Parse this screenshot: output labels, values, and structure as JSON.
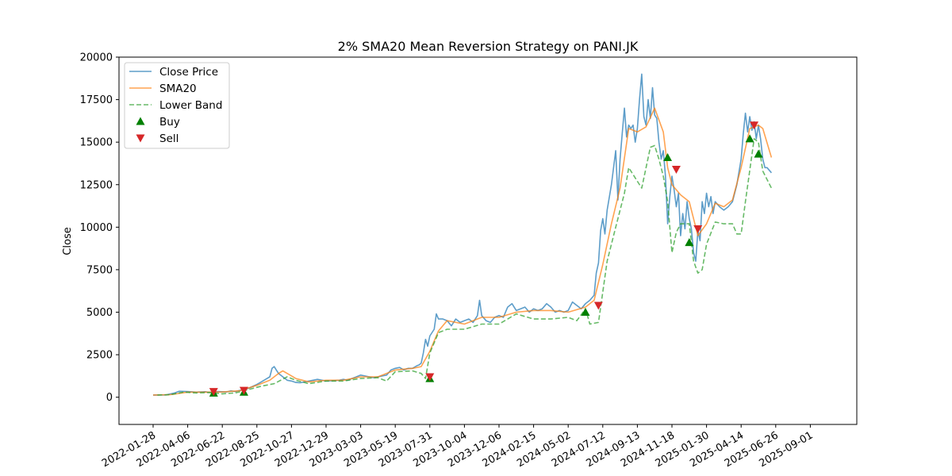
{
  "chart_data": {
    "type": "line",
    "title": "2% SMA20 Mean Reversion Strategy on PANI.JK",
    "xlabel": "",
    "ylabel": "Close",
    "ylim": [
      -1600,
      20000
    ],
    "y_ticks": [
      0,
      2500,
      5000,
      7500,
      10000,
      12500,
      15000,
      17500,
      20000
    ],
    "x_ticks": [
      "2022-01-28",
      "2022-04-06",
      "2022-06-22",
      "2022-08-25",
      "2022-10-27",
      "2022-12-29",
      "2023-03-03",
      "2023-05-19",
      "2023-07-31",
      "2023-10-04",
      "2023-12-06",
      "2024-02-15",
      "2024-05-02",
      "2024-07-12",
      "2024-09-13",
      "2024-11-18",
      "2025-01-30",
      "2025-04-14",
      "2025-06-26",
      "2025-09-01"
    ],
    "grid": false,
    "legend_position": "top-left",
    "colors": {
      "close": "#1f77b4",
      "sma": "#ff7f0e",
      "lower": "#2ca02c",
      "buy": "green",
      "sell": "#d62728"
    },
    "series": [
      {
        "name": "Close Price",
        "style": "solid",
        "points": [
          [
            0,
            130
          ],
          [
            3,
            135
          ],
          [
            5,
            250
          ],
          [
            6,
            350
          ],
          [
            8,
            330
          ],
          [
            10,
            300
          ],
          [
            12,
            320
          ],
          [
            13,
            280
          ],
          [
            14,
            300
          ],
          [
            15,
            330
          ],
          [
            17,
            310
          ],
          [
            18,
            380
          ],
          [
            19,
            330
          ],
          [
            20,
            400
          ],
          [
            22,
            520
          ],
          [
            24,
            750
          ],
          [
            25,
            900
          ],
          [
            26,
            1050
          ],
          [
            27,
            1200
          ],
          [
            27.5,
            1700
          ],
          [
            28,
            1800
          ],
          [
            28.5,
            1600
          ],
          [
            29,
            1400
          ],
          [
            30,
            1200
          ],
          [
            31,
            1000
          ],
          [
            32,
            950
          ],
          [
            33,
            870
          ],
          [
            34,
            850
          ],
          [
            35,
            900
          ],
          [
            37,
            1000
          ],
          [
            38,
            1050
          ],
          [
            40,
            950
          ],
          [
            42,
            980
          ],
          [
            43,
            1000
          ],
          [
            44,
            1050
          ],
          [
            45,
            1000
          ],
          [
            46,
            1100
          ],
          [
            47,
            1200
          ],
          [
            48,
            1300
          ],
          [
            49,
            1250
          ],
          [
            50,
            1200
          ],
          [
            51,
            1150
          ],
          [
            52,
            1200
          ],
          [
            53,
            1250
          ],
          [
            54,
            1300
          ],
          [
            55,
            1600
          ],
          [
            56,
            1700
          ],
          [
            57,
            1750
          ],
          [
            58,
            1600
          ],
          [
            59,
            1700
          ],
          [
            60,
            1700
          ],
          [
            61,
            1850
          ],
          [
            61.5,
            1900
          ],
          [
            62,
            2000
          ],
          [
            62.5,
            2600
          ],
          [
            63,
            3400
          ],
          [
            63.5,
            3000
          ],
          [
            64,
            3600
          ],
          [
            65,
            4000
          ],
          [
            65.5,
            4900
          ],
          [
            66,
            4600
          ],
          [
            67,
            4600
          ],
          [
            68,
            4500
          ],
          [
            69,
            4200
          ],
          [
            70,
            4600
          ],
          [
            71,
            4400
          ],
          [
            72,
            4500
          ],
          [
            73,
            4600
          ],
          [
            74,
            4400
          ],
          [
            75,
            4800
          ],
          [
            75.5,
            5700
          ],
          [
            76,
            4800
          ],
          [
            77,
            4500
          ],
          [
            78,
            4400
          ],
          [
            79,
            4700
          ],
          [
            80,
            4800
          ],
          [
            81,
            4700
          ],
          [
            82,
            5300
          ],
          [
            83,
            5500
          ],
          [
            84,
            5100
          ],
          [
            85,
            5200
          ],
          [
            86,
            5300
          ],
          [
            87,
            5000
          ],
          [
            88,
            5200
          ],
          [
            89,
            5100
          ],
          [
            90,
            5200
          ],
          [
            91,
            5500
          ],
          [
            92,
            5300
          ],
          [
            93,
            5000
          ],
          [
            94,
            5100
          ],
          [
            95,
            5000
          ],
          [
            96,
            5100
          ],
          [
            97,
            5600
          ],
          [
            98,
            5400
          ],
          [
            99,
            5200
          ],
          [
            100,
            5500
          ],
          [
            101,
            5700
          ],
          [
            102,
            6000
          ],
          [
            102.5,
            7300
          ],
          [
            103,
            7900
          ],
          [
            103.5,
            9800
          ],
          [
            104,
            10500
          ],
          [
            104.5,
            9600
          ],
          [
            105,
            11000
          ],
          [
            106,
            12500
          ],
          [
            107,
            14500
          ],
          [
            107.5,
            11600
          ],
          [
            108,
            14000
          ],
          [
            108.5,
            15500
          ],
          [
            109,
            17000
          ],
          [
            109.5,
            15300
          ],
          [
            110,
            16000
          ],
          [
            110.5,
            15800
          ],
          [
            111,
            16000
          ],
          [
            111.5,
            15000
          ],
          [
            112,
            15800
          ],
          [
            112.5,
            17500
          ],
          [
            113,
            19000
          ],
          [
            113.5,
            16500
          ],
          [
            114,
            16000
          ],
          [
            114.5,
            17500
          ],
          [
            115,
            16400
          ],
          [
            115.5,
            18200
          ],
          [
            116,
            16600
          ],
          [
            116.5,
            16400
          ],
          [
            117,
            15000
          ],
          [
            117.5,
            14000
          ],
          [
            118,
            14500
          ],
          [
            118.5,
            13000
          ],
          [
            119,
            10200
          ],
          [
            119.5,
            11800
          ],
          [
            120,
            13000
          ],
          [
            120.5,
            12200
          ],
          [
            121,
            11200
          ],
          [
            121.5,
            12000
          ],
          [
            122,
            9500
          ],
          [
            122.5,
            10800
          ],
          [
            123,
            9900
          ],
          [
            123.5,
            11500
          ],
          [
            124,
            10500
          ],
          [
            124.5,
            9900
          ],
          [
            125,
            8500
          ],
          [
            125.5,
            8000
          ],
          [
            126,
            9800
          ],
          [
            126.5,
            9200
          ],
          [
            127,
            11500
          ],
          [
            127.5,
            10800
          ],
          [
            128,
            12000
          ],
          [
            128.5,
            11200
          ],
          [
            129,
            11800
          ],
          [
            129.5,
            10800
          ],
          [
            130,
            11500
          ],
          [
            131,
            11200
          ],
          [
            132,
            11000
          ],
          [
            133,
            11200
          ],
          [
            134,
            11500
          ],
          [
            135,
            12500
          ],
          [
            136,
            14000
          ],
          [
            136.5,
            15500
          ],
          [
            137,
            16700
          ],
          [
            137.5,
            15600
          ],
          [
            138,
            16500
          ],
          [
            138.5,
            15700
          ],
          [
            139,
            16200
          ],
          [
            139.5,
            15200
          ],
          [
            140,
            16000
          ],
          [
            140.5,
            15200
          ],
          [
            141,
            14000
          ],
          [
            141.5,
            13500
          ],
          [
            142,
            13500
          ],
          [
            143,
            13200
          ]
        ]
      },
      {
        "name": "SMA20",
        "style": "solid",
        "points": [
          [
            0,
            130
          ],
          [
            4,
            150
          ],
          [
            8,
            300
          ],
          [
            12,
            300
          ],
          [
            16,
            310
          ],
          [
            20,
            380
          ],
          [
            24,
            700
          ],
          [
            27,
            1000
          ],
          [
            29,
            1400
          ],
          [
            30,
            1550
          ],
          [
            31,
            1400
          ],
          [
            33,
            1100
          ],
          [
            36,
            900
          ],
          [
            40,
            1000
          ],
          [
            44,
            1000
          ],
          [
            48,
            1200
          ],
          [
            52,
            1200
          ],
          [
            56,
            1600
          ],
          [
            60,
            1700
          ],
          [
            62,
            1800
          ],
          [
            64,
            2700
          ],
          [
            66,
            3900
          ],
          [
            68,
            4500
          ],
          [
            72,
            4300
          ],
          [
            76,
            4700
          ],
          [
            80,
            4700
          ],
          [
            84,
            5000
          ],
          [
            88,
            5100
          ],
          [
            92,
            5100
          ],
          [
            96,
            5000
          ],
          [
            100,
            5300
          ],
          [
            102,
            5700
          ],
          [
            104,
            7800
          ],
          [
            106,
            10200
          ],
          [
            108,
            12300
          ],
          [
            110,
            15800
          ],
          [
            112,
            15600
          ],
          [
            114,
            15900
          ],
          [
            116,
            17000
          ],
          [
            118,
            15600
          ],
          [
            119,
            13500
          ],
          [
            120,
            12500
          ],
          [
            122,
            11900
          ],
          [
            124,
            11500
          ],
          [
            126,
            9500
          ],
          [
            128,
            10200
          ],
          [
            130,
            11400
          ],
          [
            132,
            11200
          ],
          [
            134,
            11600
          ],
          [
            136,
            13500
          ],
          [
            138,
            15800
          ],
          [
            140,
            16000
          ],
          [
            141,
            15800
          ],
          [
            143,
            14100
          ]
        ]
      },
      {
        "name": "Lower Band",
        "style": "dashed",
        "points": [
          [
            1,
            130
          ],
          [
            4,
            150
          ],
          [
            7,
            300
          ],
          [
            10,
            250
          ],
          [
            13,
            280
          ],
          [
            16,
            200
          ],
          [
            19,
            250
          ],
          [
            22,
            450
          ],
          [
            25,
            650
          ],
          [
            28,
            800
          ],
          [
            31,
            1200
          ],
          [
            33,
            1000
          ],
          [
            36,
            800
          ],
          [
            40,
            950
          ],
          [
            44,
            950
          ],
          [
            48,
            1100
          ],
          [
            52,
            1150
          ],
          [
            54,
            950
          ],
          [
            56,
            1500
          ],
          [
            60,
            1550
          ],
          [
            62,
            1400
          ],
          [
            63,
            1100
          ],
          [
            64,
            2600
          ],
          [
            66,
            3800
          ],
          [
            68,
            4000
          ],
          [
            72,
            4000
          ],
          [
            76,
            4300
          ],
          [
            80,
            4300
          ],
          [
            84,
            4900
          ],
          [
            88,
            4600
          ],
          [
            92,
            4600
          ],
          [
            96,
            4700
          ],
          [
            98,
            4500
          ],
          [
            100,
            5200
          ],
          [
            101,
            4300
          ],
          [
            103,
            4400
          ],
          [
            105,
            8000
          ],
          [
            107,
            10000
          ],
          [
            109,
            12000
          ],
          [
            110,
            13500
          ],
          [
            112,
            12700
          ],
          [
            113,
            12300
          ],
          [
            115,
            14700
          ],
          [
            116,
            14800
          ],
          [
            117,
            14000
          ],
          [
            118,
            13000
          ],
          [
            119,
            11500
          ],
          [
            120,
            8500
          ],
          [
            121,
            9700
          ],
          [
            122,
            10200
          ],
          [
            124,
            10200
          ],
          [
            125,
            8000
          ],
          [
            126,
            7300
          ],
          [
            127,
            7500
          ],
          [
            128,
            9000
          ],
          [
            130,
            10300
          ],
          [
            132,
            10200
          ],
          [
            134,
            10200
          ],
          [
            135,
            9600
          ],
          [
            136,
            9600
          ],
          [
            137,
            11500
          ],
          [
            139,
            15200
          ],
          [
            140,
            15000
          ],
          [
            141,
            13300
          ],
          [
            142,
            12800
          ],
          [
            143,
            12300
          ]
        ]
      }
    ],
    "markers": {
      "buy": [
        [
          14,
          250
        ],
        [
          21,
          300
        ],
        [
          64,
          1100
        ],
        [
          100,
          5000
        ],
        [
          119,
          14100
        ],
        [
          124,
          9100
        ],
        [
          138,
          15200
        ],
        [
          140,
          14300
        ]
      ],
      "sell": [
        [
          14,
          330
        ],
        [
          21,
          400
        ],
        [
          64,
          1200
        ],
        [
          103,
          5400
        ],
        [
          121,
          13400
        ],
        [
          126,
          9900
        ],
        [
          139,
          16000
        ]
      ]
    },
    "legend": [
      {
        "label": "Close Price",
        "kind": "line"
      },
      {
        "label": "SMA20",
        "kind": "line"
      },
      {
        "label": "Lower Band",
        "kind": "dashed"
      },
      {
        "label": "Buy",
        "kind": "buy"
      },
      {
        "label": "Sell",
        "kind": "sell"
      }
    ]
  }
}
